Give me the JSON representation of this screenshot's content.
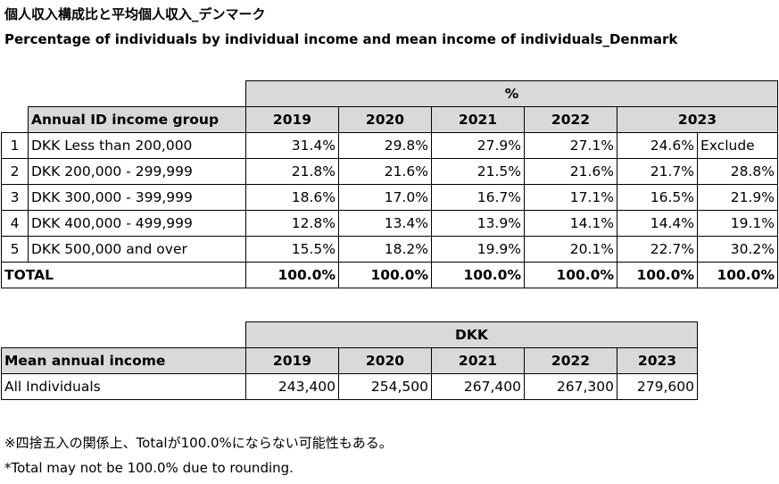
{
  "title_jp": "個人収入構成比と平均個人収入_デンマーク",
  "title_en": "Percentage of individuals by individual income and mean income of individuals_Denmark",
  "income_table": {
    "unit": "%",
    "group_header": "Annual ID income group",
    "years": [
      "2019",
      "2020",
      "2021",
      "2022",
      "2023"
    ],
    "rows": [
      {
        "num": "1",
        "label": "DKK Less than 200,000",
        "values": [
          "31.4%",
          "29.8%",
          "27.9%",
          "27.1%",
          "24.6%",
          "Exclude"
        ]
      },
      {
        "num": "2",
        "label": "DKK 200,000 - 299,999",
        "values": [
          "21.8%",
          "21.6%",
          "21.5%",
          "21.6%",
          "21.7%",
          "28.8%"
        ]
      },
      {
        "num": "3",
        "label": "DKK 300,000 - 399,999",
        "values": [
          "18.6%",
          "17.0%",
          "16.7%",
          "17.1%",
          "16.5%",
          "21.9%"
        ]
      },
      {
        "num": "4",
        "label": "DKK 400,000 - 499,999",
        "values": [
          "12.8%",
          "13.4%",
          "13.9%",
          "14.1%",
          "14.4%",
          "19.1%"
        ]
      },
      {
        "num": "5",
        "label": "DKK 500,000 and over",
        "values": [
          "15.5%",
          "18.2%",
          "19.9%",
          "20.1%",
          "22.7%",
          "30.2%"
        ]
      }
    ],
    "total": {
      "label": "TOTAL",
      "values": [
        "100.0%",
        "100.0%",
        "100.0%",
        "100.0%",
        "100.0%",
        "100.0%"
      ]
    }
  },
  "mean_table": {
    "unit": "DKK",
    "header": "Mean annual income",
    "years": [
      "2019",
      "2020",
      "2021",
      "2022",
      "2023"
    ],
    "row": {
      "label": "All Individuals",
      "values": [
        "243,400",
        "254,500",
        "267,400",
        "267,300",
        "279,600"
      ]
    }
  },
  "notes": {
    "jp": "※四捨五入の関係上、Totalが100.0%にならない可能性もある。",
    "en": "*Total may not be 100.0% due to rounding."
  }
}
